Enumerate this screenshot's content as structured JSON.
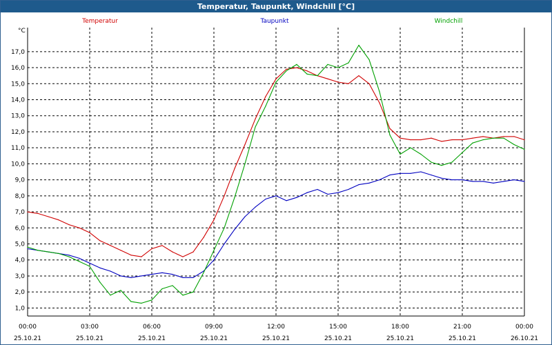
{
  "window": {
    "title": "Temperatur, Taupunkt, Windchill [°C]"
  },
  "colors": {
    "temperatur": "#d00000",
    "taupunkt": "#0000c0",
    "windchill": "#00a000",
    "grid": "#000000"
  },
  "chart_data": {
    "type": "line",
    "title": "Temperatur, Taupunkt, Windchill [°C]",
    "ylabel": "°C",
    "xlabel": "",
    "ylim": [
      0.5,
      18.5
    ],
    "xlim": [
      0,
      24
    ],
    "y_ticks": [
      "1,0",
      "2,0",
      "3,0",
      "4,0",
      "5,0",
      "6,0",
      "7,0",
      "8,0",
      "9,0",
      "10,0",
      "11,0",
      "12,0",
      "13,0",
      "14,0",
      "15,0",
      "16,0",
      "17,0"
    ],
    "x_ticks": [
      {
        "time": "00:00",
        "date": "25.10.21"
      },
      {
        "time": "03:00",
        "date": "25.10.21"
      },
      {
        "time": "06:00",
        "date": "25.10.21"
      },
      {
        "time": "09:00",
        "date": "25.10.21"
      },
      {
        "time": "12:00",
        "date": "25.10.21"
      },
      {
        "time": "15:00",
        "date": "25.10.21"
      },
      {
        "time": "18:00",
        "date": "25.10.21"
      },
      {
        "time": "21:00",
        "date": "25.10.21"
      },
      {
        "time": "00:00",
        "date": "26.10.21"
      }
    ],
    "grid": true,
    "series": [
      {
        "name": "Temperatur",
        "x": [
          0,
          0.5,
          1,
          1.5,
          2,
          2.5,
          3,
          3.5,
          4,
          4.5,
          5,
          5.5,
          6,
          6.5,
          7,
          7.5,
          8,
          8.5,
          9,
          9.5,
          10,
          10.5,
          11,
          11.5,
          12,
          12.5,
          13,
          13.5,
          14,
          14.5,
          15,
          15.5,
          16,
          16.5,
          17,
          17.5,
          18,
          18.5,
          19,
          19.5,
          20,
          20.5,
          21,
          21.5,
          22,
          22.5,
          23,
          23.5,
          24
        ],
        "y": [
          7.0,
          6.9,
          6.7,
          6.5,
          6.2,
          6.0,
          5.7,
          5.2,
          4.9,
          4.6,
          4.3,
          4.2,
          4.7,
          4.9,
          4.5,
          4.2,
          4.5,
          5.4,
          6.5,
          8.0,
          9.7,
          11.2,
          12.8,
          14.2,
          15.3,
          15.9,
          16.0,
          15.8,
          15.5,
          15.3,
          15.1,
          15.0,
          15.5,
          15.0,
          13.8,
          12.2,
          11.6,
          11.5,
          11.5,
          11.6,
          11.4,
          11.5,
          11.5,
          11.6,
          11.7,
          11.6,
          11.7,
          11.7,
          11.5
        ]
      },
      {
        "name": "Taupunkt",
        "x": [
          0,
          0.5,
          1,
          1.5,
          2,
          2.5,
          3,
          3.5,
          4,
          4.5,
          5,
          5.5,
          6,
          6.5,
          7,
          7.5,
          8,
          8.5,
          9,
          9.5,
          10,
          10.5,
          11,
          11.5,
          12,
          12.5,
          13,
          13.5,
          14,
          14.5,
          15,
          15.5,
          16,
          16.5,
          17,
          17.5,
          18,
          18.5,
          19,
          19.5,
          20,
          20.5,
          21,
          21.5,
          22,
          22.5,
          23,
          23.5,
          24
        ],
        "y": [
          4.7,
          4.6,
          4.5,
          4.4,
          4.3,
          4.1,
          3.8,
          3.5,
          3.3,
          3.0,
          2.9,
          3.0,
          3.1,
          3.2,
          3.1,
          2.9,
          2.9,
          3.3,
          4.0,
          5.0,
          5.9,
          6.7,
          7.3,
          7.8,
          8.0,
          7.7,
          7.9,
          8.2,
          8.4,
          8.1,
          8.2,
          8.4,
          8.7,
          8.8,
          9.0,
          9.3,
          9.4,
          9.4,
          9.5,
          9.3,
          9.1,
          9.0,
          9.0,
          8.9,
          8.9,
          8.8,
          8.9,
          9.0,
          8.9
        ]
      },
      {
        "name": "Windchill",
        "x": [
          0,
          0.5,
          1,
          1.5,
          2,
          2.5,
          3,
          3.5,
          4,
          4.5,
          5,
          5.5,
          6,
          6.5,
          7,
          7.5,
          8,
          8.5,
          9,
          9.5,
          10,
          10.5,
          11,
          11.5,
          12,
          12.5,
          13,
          13.5,
          14,
          14.5,
          15,
          15.5,
          16,
          16.5,
          17,
          17.5,
          18,
          18.5,
          19,
          19.5,
          20,
          20.5,
          21,
          21.5,
          22,
          22.5,
          23,
          23.5,
          24
        ],
        "y": [
          4.8,
          4.6,
          4.5,
          4.4,
          4.2,
          3.9,
          3.6,
          2.6,
          1.8,
          2.1,
          1.4,
          1.3,
          1.5,
          2.2,
          2.4,
          1.8,
          2.0,
          3.2,
          4.6,
          6.0,
          7.9,
          10.0,
          12.3,
          13.6,
          15.1,
          15.8,
          16.2,
          15.6,
          15.5,
          16.2,
          16.0,
          16.3,
          17.4,
          16.5,
          14.5,
          11.8,
          10.6,
          11.0,
          10.6,
          10.1,
          9.9,
          10.1,
          10.7,
          11.3,
          11.5,
          11.6,
          11.6,
          11.2,
          10.9
        ]
      }
    ]
  }
}
